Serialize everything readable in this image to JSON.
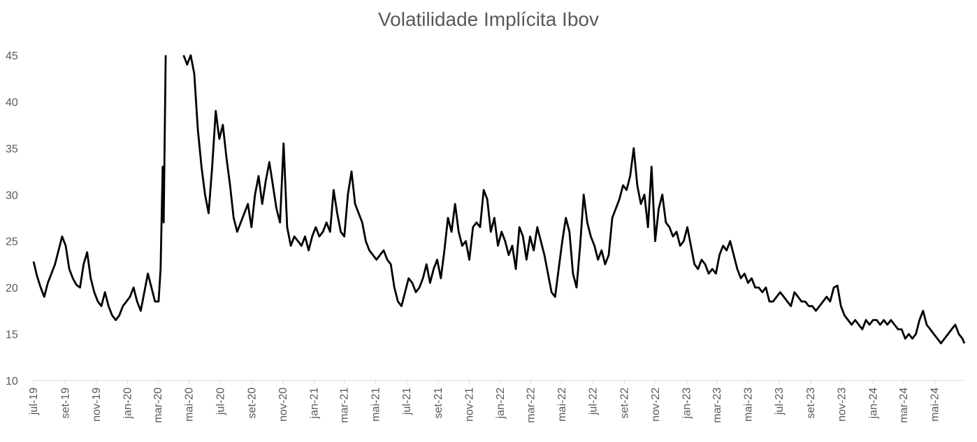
{
  "chart_data": {
    "type": "line",
    "title": "Volatilidade Implícita Ibov",
    "xlabel": "",
    "ylabel": "",
    "ylim": [
      10,
      45
    ],
    "yticks": [
      10,
      15,
      20,
      25,
      30,
      35,
      40,
      45
    ],
    "xticks": [
      "jul-19",
      "set-19",
      "nov-19",
      "jan-20",
      "mar-20",
      "mai-20",
      "jul-20",
      "set-20",
      "nov-20",
      "jan-21",
      "mar-21",
      "mai-21",
      "jul-21",
      "set-21",
      "nov-21",
      "jan-22",
      "mar-22",
      "mai-22",
      "jul-22",
      "set-22",
      "nov-22",
      "jan-23",
      "mar-23",
      "mai-23",
      "jul-23",
      "set-23",
      "nov-23",
      "jan-24",
      "mar-24",
      "mai-24"
    ],
    "grid": false,
    "legend": "none",
    "line_color": "#000000",
    "series": [
      {
        "x": [
          "2019-07-01",
          "2019-07-08",
          "2019-07-15",
          "2019-07-22",
          "2019-07-29",
          "2019-08-05",
          "2019-08-12",
          "2019-08-19",
          "2019-08-26",
          "2019-09-02",
          "2019-09-09",
          "2019-09-16",
          "2019-09-23",
          "2019-09-30",
          "2019-10-07",
          "2019-10-14",
          "2019-10-21",
          "2019-10-28",
          "2019-11-04",
          "2019-11-11",
          "2019-11-18",
          "2019-11-25",
          "2019-12-02",
          "2019-12-09",
          "2019-12-16",
          "2019-12-23",
          "2019-12-30",
          "2020-01-06",
          "2020-01-13",
          "2020-01-20",
          "2020-01-27",
          "2020-02-03",
          "2020-02-10",
          "2020-02-17",
          "2020-02-24",
          "2020-03-02",
          "2020-03-06",
          "2020-03-10",
          "2020-03-12",
          "2020-03-16",
          "2020-04-20",
          "2020-04-27",
          "2020-05-04",
          "2020-05-11",
          "2020-05-18",
          "2020-05-25",
          "2020-06-01",
          "2020-06-08",
          "2020-06-15",
          "2020-06-22",
          "2020-06-29",
          "2020-07-06",
          "2020-07-13",
          "2020-07-20",
          "2020-07-27",
          "2020-08-03",
          "2020-08-10",
          "2020-08-17",
          "2020-08-24",
          "2020-08-31",
          "2020-09-07",
          "2020-09-14",
          "2020-09-21",
          "2020-09-28",
          "2020-10-05",
          "2020-10-12",
          "2020-10-19",
          "2020-10-26",
          "2020-11-02",
          "2020-11-09",
          "2020-11-16",
          "2020-11-23",
          "2020-11-30",
          "2020-12-07",
          "2020-12-14",
          "2020-12-21",
          "2020-12-28",
          "2021-01-04",
          "2021-01-11",
          "2021-01-18",
          "2021-01-25",
          "2021-02-01",
          "2021-02-08",
          "2021-02-15",
          "2021-02-22",
          "2021-03-01",
          "2021-03-08",
          "2021-03-15",
          "2021-03-22",
          "2021-03-29",
          "2021-04-05",
          "2021-04-12",
          "2021-04-19",
          "2021-04-26",
          "2021-05-03",
          "2021-05-10",
          "2021-05-17",
          "2021-05-24",
          "2021-05-31",
          "2021-06-07",
          "2021-06-14",
          "2021-06-21",
          "2021-06-28",
          "2021-07-05",
          "2021-07-12",
          "2021-07-19",
          "2021-07-26",
          "2021-08-02",
          "2021-08-09",
          "2021-08-16",
          "2021-08-23",
          "2021-08-30",
          "2021-09-06",
          "2021-09-13",
          "2021-09-20",
          "2021-09-27",
          "2021-10-04",
          "2021-10-11",
          "2021-10-18",
          "2021-10-25",
          "2021-11-01",
          "2021-11-08",
          "2021-11-15",
          "2021-11-22",
          "2021-11-29",
          "2021-12-06",
          "2021-12-13",
          "2021-12-20",
          "2021-12-27",
          "2022-01-03",
          "2022-01-10",
          "2022-01-17",
          "2022-01-24",
          "2022-01-31",
          "2022-02-07",
          "2022-02-14",
          "2022-02-21",
          "2022-02-28",
          "2022-03-07",
          "2022-03-14",
          "2022-03-21",
          "2022-03-28",
          "2022-04-04",
          "2022-04-11",
          "2022-04-18",
          "2022-04-25",
          "2022-05-02",
          "2022-05-09",
          "2022-05-16",
          "2022-05-23",
          "2022-05-30",
          "2022-06-06",
          "2022-06-13",
          "2022-06-20",
          "2022-06-27",
          "2022-07-04",
          "2022-07-11",
          "2022-07-18",
          "2022-07-25",
          "2022-08-01",
          "2022-08-08",
          "2022-08-15",
          "2022-08-22",
          "2022-08-29",
          "2022-09-05",
          "2022-09-12",
          "2022-09-19",
          "2022-09-26",
          "2022-10-03",
          "2022-10-10",
          "2022-10-17",
          "2022-10-24",
          "2022-10-31",
          "2022-11-07",
          "2022-11-14",
          "2022-11-21",
          "2022-11-28",
          "2022-12-05",
          "2022-12-12",
          "2022-12-19",
          "2022-12-26",
          "2023-01-02",
          "2023-01-09",
          "2023-01-16",
          "2023-01-23",
          "2023-01-30",
          "2023-02-06",
          "2023-02-13",
          "2023-02-20",
          "2023-02-27",
          "2023-03-06",
          "2023-03-13",
          "2023-03-20",
          "2023-03-27",
          "2023-04-03",
          "2023-04-10",
          "2023-04-17",
          "2023-04-24",
          "2023-05-01",
          "2023-05-08",
          "2023-05-15",
          "2023-05-22",
          "2023-05-29",
          "2023-06-05",
          "2023-06-12",
          "2023-06-19",
          "2023-06-26",
          "2023-07-03",
          "2023-07-10",
          "2023-07-17",
          "2023-07-24",
          "2023-07-31",
          "2023-08-07",
          "2023-08-14",
          "2023-08-21",
          "2023-08-28",
          "2023-09-04",
          "2023-09-11",
          "2023-09-18",
          "2023-09-25",
          "2023-10-02",
          "2023-10-09",
          "2023-10-16",
          "2023-10-23",
          "2023-10-30",
          "2023-11-06",
          "2023-11-13",
          "2023-11-20",
          "2023-11-27",
          "2023-12-04",
          "2023-12-11",
          "2023-12-18",
          "2023-12-25",
          "2024-01-01",
          "2024-01-08",
          "2024-01-15",
          "2024-01-22",
          "2024-01-29",
          "2024-02-05",
          "2024-02-12",
          "2024-02-19",
          "2024-02-26",
          "2024-03-04",
          "2024-03-11",
          "2024-03-18",
          "2024-03-25",
          "2024-04-01",
          "2024-04-08",
          "2024-04-15",
          "2024-04-22",
          "2024-04-29",
          "2024-05-06",
          "2024-05-13",
          "2024-05-20",
          "2024-05-27",
          "2024-06-03",
          "2024-06-10",
          "2024-06-17",
          "2024-06-24",
          "2024-06-28"
        ],
        "values": [
          22.8,
          21.2,
          20.0,
          19.0,
          20.5,
          21.5,
          22.5,
          24.0,
          25.5,
          24.5,
          22.0,
          21.0,
          20.3,
          20.0,
          22.5,
          23.8,
          21.0,
          19.5,
          18.5,
          18.0,
          19.5,
          18.0,
          17.0,
          16.5,
          17.0,
          18.0,
          18.5,
          19.0,
          20.0,
          18.5,
          17.5,
          19.5,
          21.5,
          20.0,
          18.5,
          18.5,
          22.0,
          33.0,
          27.0,
          45.0,
          45.0,
          44.0,
          45.0,
          43.0,
          37.0,
          33.0,
          30.0,
          28.0,
          33.0,
          39.0,
          36.0,
          37.5,
          34.0,
          31.0,
          27.5,
          26.0,
          27.0,
          28.0,
          29.0,
          26.5,
          30.0,
          32.0,
          29.0,
          31.5,
          33.5,
          31.0,
          28.5,
          27.0,
          35.5,
          26.5,
          24.5,
          25.5,
          25.0,
          24.5,
          25.5,
          24.0,
          25.5,
          26.5,
          25.5,
          26.0,
          27.0,
          26.0,
          30.5,
          28.0,
          26.0,
          25.5,
          30.0,
          32.5,
          29.0,
          28.0,
          27.0,
          25.0,
          24.0,
          23.5,
          23.0,
          23.5,
          24.0,
          23.0,
          22.5,
          20.0,
          18.5,
          18.0,
          19.5,
          21.0,
          20.5,
          19.5,
          20.0,
          21.0,
          22.5,
          20.5,
          22.0,
          23.0,
          21.0,
          24.0,
          27.5,
          26.0,
          29.0,
          26.0,
          24.5,
          25.0,
          23.0,
          26.5,
          27.0,
          26.5,
          30.5,
          29.5,
          26.0,
          27.5,
          24.5,
          26.0,
          25.0,
          23.5,
          24.5,
          22.0,
          26.5,
          25.5,
          23.0,
          25.5,
          24.0,
          26.5,
          25.0,
          23.5,
          21.5,
          19.5,
          19.0,
          22.0,
          25.0,
          27.5,
          26.0,
          21.5,
          20.0,
          24.5,
          30.0,
          27.0,
          25.5,
          24.5,
          23.0,
          24.0,
          22.5,
          23.5,
          27.5,
          28.5,
          29.5,
          31.0,
          30.5,
          32.0,
          35.0,
          31.0,
          29.0,
          30.0,
          26.5,
          33.0,
          25.0,
          28.5,
          30.0,
          27.0,
          26.5,
          25.5,
          26.0,
          24.5,
          25.0,
          26.5,
          24.5,
          22.5,
          22.0,
          23.0,
          22.5,
          21.5,
          22.0,
          21.5,
          23.5,
          24.5,
          24.0,
          25.0,
          23.5,
          22.0,
          21.0,
          21.5,
          20.5,
          21.0,
          20.0,
          20.0,
          19.5,
          20.0,
          18.5,
          18.5,
          19.0,
          19.5,
          19.0,
          18.5,
          18.0,
          19.5,
          19.0,
          18.5,
          18.5,
          18.0,
          18.0,
          17.5,
          18.0,
          18.5,
          19.0,
          18.5,
          20.0,
          20.2,
          18.0,
          17.0,
          16.5,
          16.0,
          16.5,
          16.0,
          15.5,
          16.5,
          16.0,
          16.5,
          16.5,
          16.0,
          16.5,
          16.0,
          16.5,
          16.0,
          15.5,
          15.5,
          14.5,
          15.0,
          14.5,
          15.0,
          16.5,
          17.5,
          16.0,
          15.5,
          15.0,
          14.5,
          14.0,
          14.5,
          15.0,
          15.5,
          16.0,
          15.0,
          14.5,
          14.0
        ]
      }
    ]
  }
}
